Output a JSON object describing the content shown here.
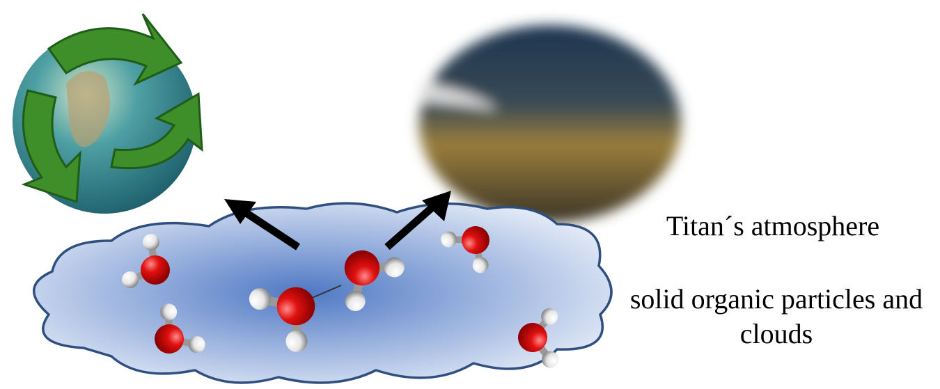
{
  "labels": {
    "titan": "Titan´s atmosphere",
    "particles": "solid organic particles and clouds"
  }
}
